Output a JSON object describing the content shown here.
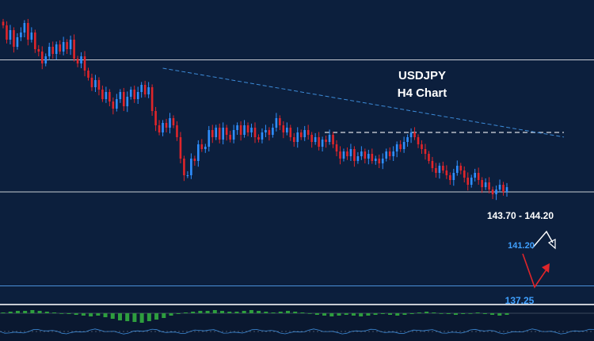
{
  "chart_data": {
    "type": "candlestick",
    "title": "USDJPY",
    "subtitle": "H4 Chart",
    "colors": {
      "background": "#0c1f3d",
      "bull": "#2f8fff",
      "bear": "#e0252a",
      "hline": "#c8ccd4",
      "trendline": "#3d8bd8",
      "dashed_zone": "#d8dce2",
      "osc_pos": "#2e9e3e",
      "osc_neg": "#2e9e3e",
      "label_white": "#ffffff",
      "label_blue": "#3fa0ff",
      "arrow_white": "#ffffff",
      "arrow_red": "#e0252a"
    },
    "ylim": [
      136.6,
      149.0
    ],
    "candles": [
      148.2,
      147.6,
      148.0,
      147.3,
      147.7,
      147.9,
      148.3,
      147.6,
      147.9,
      147.2,
      147.1,
      146.6,
      146.9,
      147.3,
      147.0,
      147.4,
      147.1,
      147.5,
      147.2,
      147.6,
      146.8,
      146.6,
      146.9,
      146.3,
      146.0,
      145.6,
      145.9,
      145.5,
      145.1,
      145.4,
      145.0,
      144.7,
      145.1,
      145.4,
      144.8,
      145.2,
      145.5,
      145.1,
      145.4,
      145.7,
      145.3,
      145.6,
      144.6,
      144.0,
      143.7,
      144.1,
      143.9,
      144.3,
      144.0,
      143.5,
      142.6,
      141.9,
      141.9,
      142.6,
      142.5,
      143.2,
      143.0,
      143.1,
      143.8,
      143.5,
      143.9,
      143.4,
      143.9,
      143.6,
      143.4,
      143.8,
      144.0,
      143.6,
      144.0,
      143.7,
      143.9,
      143.5,
      143.4,
      143.7,
      143.8,
      143.6,
      143.9,
      144.3,
      144.0,
      143.7,
      143.9,
      143.5,
      143.3,
      143.7,
      143.5,
      143.8,
      143.6,
      143.3,
      143.5,
      143.1,
      143.4,
      143.3,
      143.6,
      143.2,
      142.9,
      142.6,
      142.9,
      142.7,
      143.0,
      142.5,
      142.7,
      142.9,
      142.6,
      142.8,
      142.5,
      142.6,
      142.4,
      142.6,
      142.9,
      142.7,
      142.9,
      143.2,
      143.0,
      143.3,
      143.5,
      143.7,
      143.5,
      143.2,
      143.0,
      142.8,
      142.5,
      142.2,
      142.0,
      142.3,
      142.1,
      141.9,
      141.7,
      142.0,
      142.3,
      142.1,
      141.8,
      141.5,
      141.8,
      142.0,
      141.7,
      141.4,
      141.6,
      141.3,
      141.1,
      141.3,
      141.5,
      141.2,
      141.4
    ],
    "levels": [
      {
        "label": "",
        "value": 146.75
      },
      {
        "label": "141.20",
        "value": 141.2
      },
      {
        "label": "137.25",
        "value": 137.25
      }
    ],
    "zone_label": "143.70 - 144.20",
    "zone_value": 143.7,
    "trendline": [
      [
        45,
        146.4
      ],
      [
        170,
        143.2
      ]
    ],
    "oscillator": [
      0.1,
      0.2,
      0.3,
      0.3,
      0.4,
      0.3,
      0.2,
      0.1,
      0.0,
      -0.1,
      -0.2,
      -0.3,
      -0.4,
      -0.3,
      -0.5,
      -0.7,
      -0.9,
      -1.0,
      -1.1,
      -1.2,
      -1.0,
      -0.8,
      -0.6,
      -0.3,
      -0.1,
      0.1,
      0.2,
      0.3,
      0.3,
      0.4,
      0.3,
      0.2,
      0.2,
      0.3,
      0.4,
      0.3,
      0.2,
      0.1,
      0.2,
      0.3,
      0.2,
      0.1,
      0.0,
      -0.2,
      -0.3,
      -0.4,
      -0.3,
      -0.2,
      -0.3,
      -0.4,
      -0.3,
      -0.2,
      -0.1,
      -0.2,
      -0.3,
      -0.2,
      -0.1,
      0.1,
      0.2,
      0.1,
      0.0,
      -0.1,
      -0.2,
      -0.1,
      0.0,
      0.1,
      -0.1,
      -0.2,
      -0.3,
      -0.2
    ]
  }
}
